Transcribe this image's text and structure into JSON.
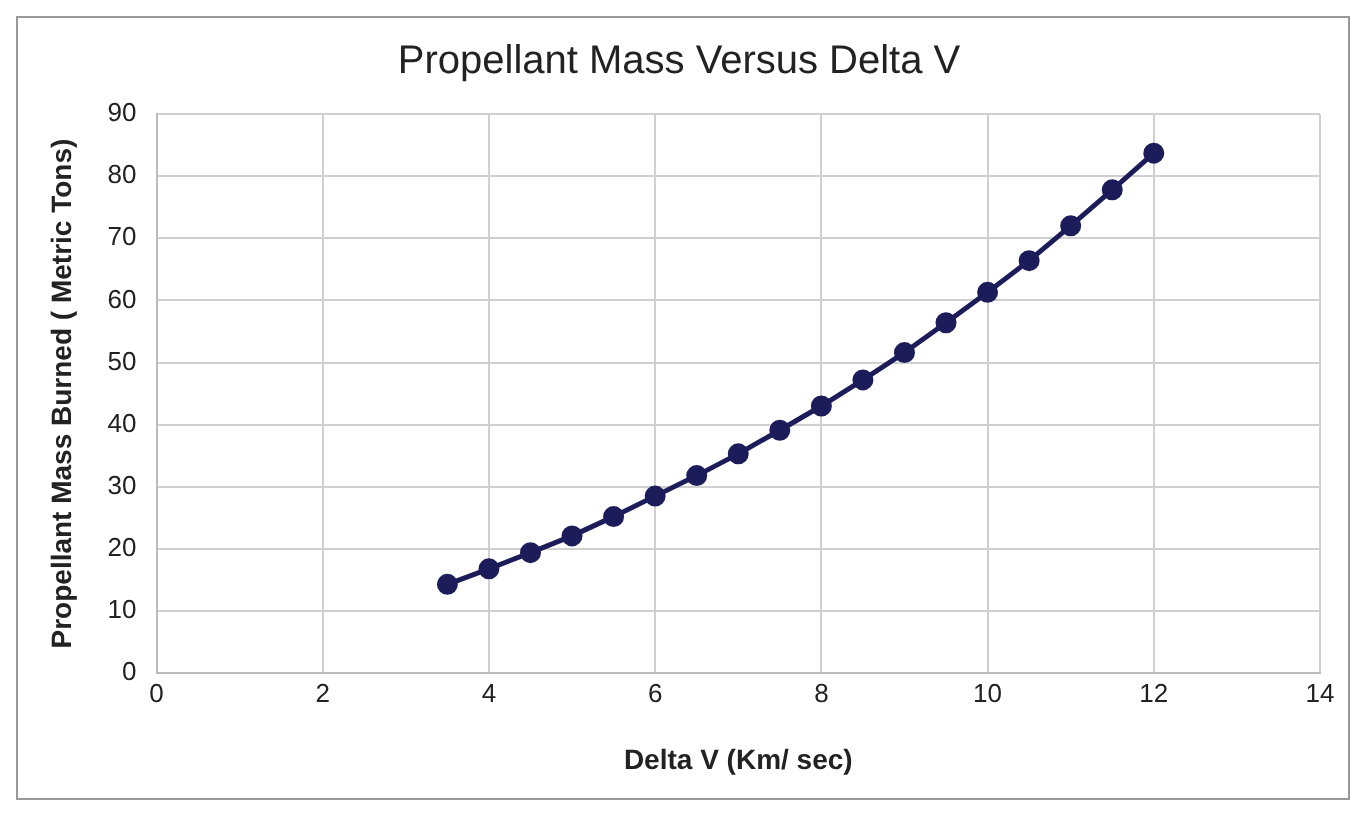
{
  "chart_data": {
    "type": "line",
    "title": "Propellant Mass Versus Delta V",
    "xlabel": "Delta V (Km/ sec)",
    "ylabel": "Propellant Mass Burned ( Metric Tons)",
    "x": [
      3.5,
      4,
      4.5,
      5,
      5.5,
      6,
      6.5,
      7,
      7.5,
      8,
      8.5,
      9,
      9.5,
      10,
      10.5,
      11,
      11.5,
      12
    ],
    "series": [
      {
        "color": "#1c1c5a",
        "values": [
          14.3,
          16.8,
          19.4,
          22.1,
          25.2,
          28.5,
          31.8,
          35.3,
          39.1,
          43,
          47.2,
          51.6,
          56.4,
          61.3,
          66.4,
          72,
          77.8,
          83.7
        ]
      }
    ],
    "xlim": [
      0,
      14
    ],
    "xticks": [
      0,
      2,
      4,
      6,
      8,
      10,
      12,
      14
    ],
    "ylim": [
      0,
      90
    ],
    "yticks": [
      0,
      10,
      20,
      30,
      40,
      50,
      60,
      70,
      80,
      90
    ],
    "grid": true,
    "legend": false,
    "marker": "circle",
    "line_style": "solid"
  }
}
